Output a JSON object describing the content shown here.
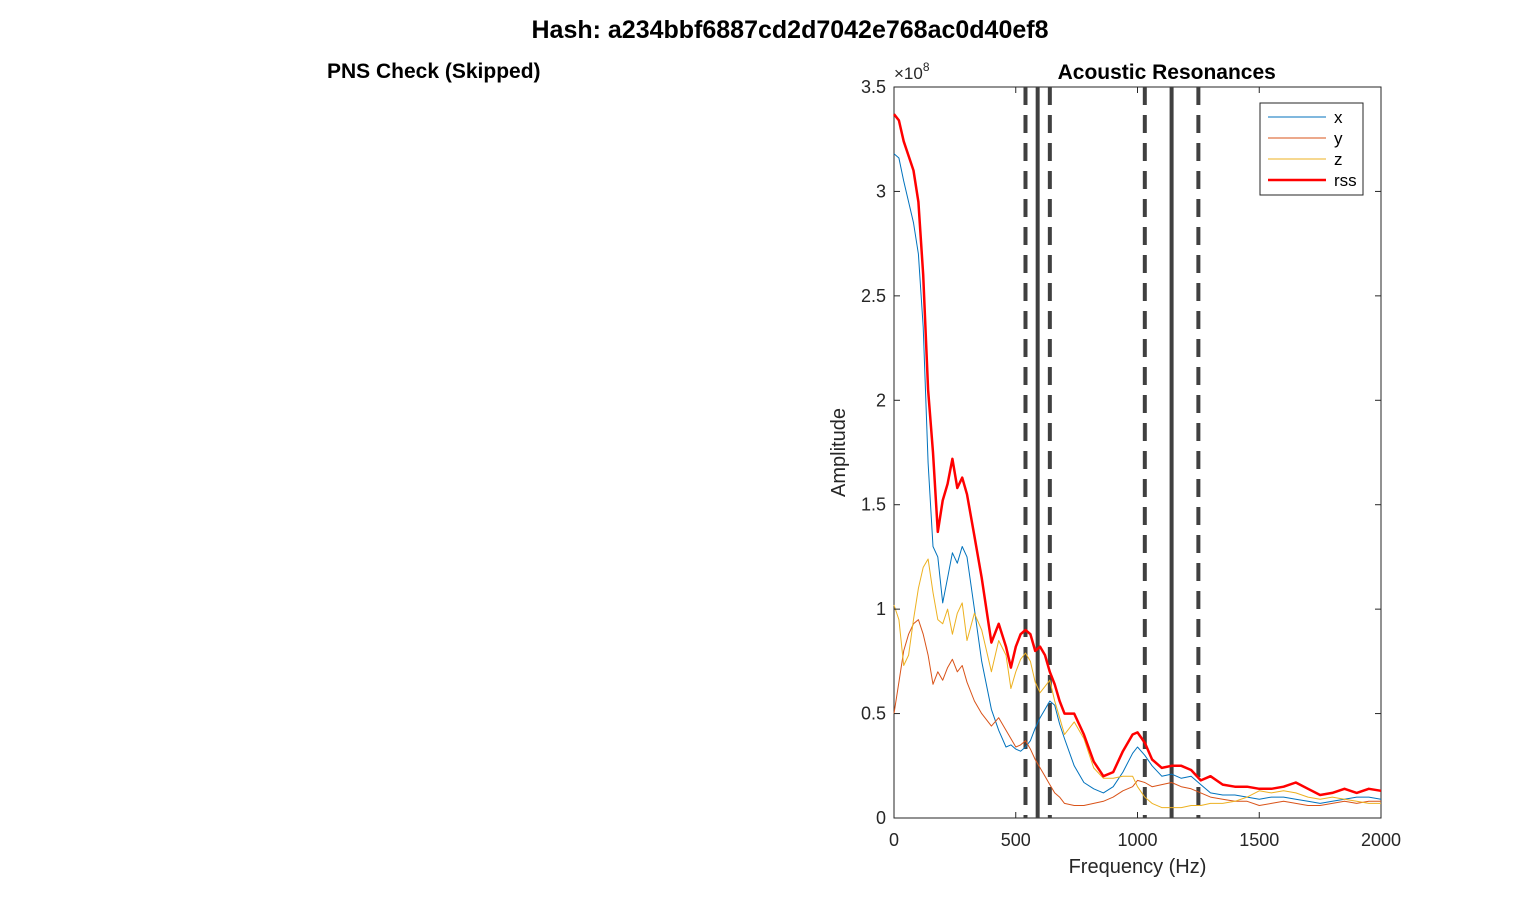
{
  "figure": {
    "title": "Hash: a234bbf6887cd2d7042e768ac0d40ef8",
    "left_panel_title": "PNS Check (Skipped)"
  },
  "chart_data": {
    "type": "line",
    "title": "Acoustic Resonances",
    "xlabel": "Frequency (Hz)",
    "ylabel": "Amplitude",
    "y_exponent_label": "×10",
    "y_exponent_power": "8",
    "xlim": [
      0,
      2000
    ],
    "ylim": [
      0,
      350000000.0
    ],
    "xticks": [
      0,
      500,
      1000,
      1500,
      2000
    ],
    "xtick_labels": [
      "0",
      "500",
      "1000",
      "1500",
      "2000"
    ],
    "yticks": [
      0,
      50000000.0,
      100000000.0,
      150000000.0,
      200000000.0,
      250000000.0,
      300000000.0,
      350000000.0
    ],
    "ytick_labels": [
      "0",
      "0.5",
      "1",
      "1.5",
      "2",
      "2.5",
      "3",
      "3.5"
    ],
    "grid": false,
    "legend_position": "top-right",
    "resonances": {
      "solid": [
        590,
        1140
      ],
      "dashed": [
        540,
        640,
        1030,
        1250
      ]
    },
    "series": [
      {
        "name": "x",
        "color": "#0072BD",
        "width": 1,
        "x": [
          0,
          20,
          40,
          60,
          80,
          100,
          120,
          140,
          160,
          180,
          200,
          220,
          240,
          260,
          280,
          300,
          330,
          360,
          400,
          430,
          460,
          480,
          500,
          520,
          540,
          560,
          580,
          600,
          620,
          640,
          660,
          680,
          700,
          740,
          780,
          820,
          860,
          900,
          940,
          980,
          1000,
          1030,
          1060,
          1100,
          1140,
          1180,
          1220,
          1260,
          1300,
          1350,
          1400,
          1450,
          1500,
          1550,
          1600,
          1650,
          1700,
          1750,
          1800,
          1850,
          1900,
          1950,
          2000
        ],
        "y": [
          318000000.0,
          316000000.0,
          305000000.0,
          295000000.0,
          285000000.0,
          270000000.0,
          235000000.0,
          170000000.0,
          130000000.0,
          125000000.0,
          103000000.0,
          115000000.0,
          127000000.0,
          122000000.0,
          130000000.0,
          125000000.0,
          100000000.0,
          75000000.0,
          52000000.0,
          42000000.0,
          34000000.0,
          35000000.0,
          33000000.0,
          32000000.0,
          34000000.0,
          37000000.0,
          43000000.0,
          48000000.0,
          52000000.0,
          56000000.0,
          54000000.0,
          45000000.0,
          38000000.0,
          25000000.0,
          17000000.0,
          14000000.0,
          12000000.0,
          15000000.0,
          22000000.0,
          31000000.0,
          34000000.0,
          30000000.0,
          25000000.0,
          20000000.0,
          21000000.0,
          19000000.0,
          20000000.0,
          16000000.0,
          12000000.0,
          11000000.0,
          11000000.0,
          10000000.0,
          9000000.0,
          10000000.0,
          10000000.0,
          9000000.0,
          8000000.0,
          7000000.0,
          8000000.0,
          9000000.0,
          10000000.0,
          10000000.0,
          9000000.0
        ]
      },
      {
        "name": "y",
        "color": "#D95319",
        "width": 1,
        "x": [
          0,
          20,
          40,
          60,
          80,
          100,
          120,
          140,
          160,
          180,
          200,
          220,
          240,
          260,
          280,
          300,
          330,
          360,
          400,
          430,
          460,
          480,
          500,
          520,
          540,
          560,
          580,
          600,
          620,
          640,
          660,
          680,
          700,
          740,
          780,
          820,
          860,
          900,
          940,
          980,
          1000,
          1030,
          1060,
          1100,
          1140,
          1180,
          1220,
          1260,
          1300,
          1350,
          1400,
          1450,
          1500,
          1550,
          1600,
          1650,
          1700,
          1750,
          1800,
          1850,
          1900,
          1950,
          2000
        ],
        "y": [
          50000000.0,
          65000000.0,
          80000000.0,
          88000000.0,
          93000000.0,
          95000000.0,
          88000000.0,
          78000000.0,
          64000000.0,
          70000000.0,
          66000000.0,
          72000000.0,
          76000000.0,
          70000000.0,
          73000000.0,
          65000000.0,
          56000000.0,
          50000000.0,
          44000000.0,
          48000000.0,
          42000000.0,
          38000000.0,
          34000000.0,
          35000000.0,
          37000000.0,
          33000000.0,
          28000000.0,
          24000000.0,
          20000000.0,
          16000000.0,
          12000000.0,
          10000000.0,
          7000000.0,
          6000000.0,
          6000000.0,
          7000000.0,
          8000000.0,
          10000000.0,
          13000000.0,
          15000000.0,
          18000000.0,
          17000000.0,
          15000000.0,
          16000000.0,
          17000000.0,
          15000000.0,
          14000000.0,
          12000000.0,
          10000000.0,
          9000000.0,
          8000000.0,
          8000000.0,
          6000000.0,
          7000000.0,
          8000000.0,
          7000000.0,
          6000000.0,
          6000000.0,
          7000000.0,
          8000000.0,
          7000000.0,
          8000000.0,
          8000000.0
        ]
      },
      {
        "name": "z",
        "color": "#EDB120",
        "width": 1,
        "x": [
          0,
          20,
          40,
          60,
          80,
          100,
          120,
          140,
          160,
          180,
          200,
          220,
          240,
          260,
          280,
          300,
          330,
          360,
          400,
          430,
          460,
          480,
          500,
          520,
          540,
          560,
          580,
          600,
          620,
          640,
          660,
          680,
          700,
          740,
          780,
          820,
          860,
          900,
          940,
          980,
          1000,
          1030,
          1060,
          1100,
          1140,
          1180,
          1220,
          1260,
          1300,
          1350,
          1400,
          1450,
          1500,
          1550,
          1600,
          1650,
          1700,
          1750,
          1800,
          1850,
          1900,
          1950,
          2000
        ],
        "y": [
          102000000.0,
          95000000.0,
          73000000.0,
          78000000.0,
          95000000.0,
          110000000.0,
          120000000.0,
          124000000.0,
          108000000.0,
          95000000.0,
          93000000.0,
          100000000.0,
          88000000.0,
          98000000.0,
          103000000.0,
          85000000.0,
          98000000.0,
          90000000.0,
          70000000.0,
          85000000.0,
          78000000.0,
          62000000.0,
          70000000.0,
          76000000.0,
          79000000.0,
          75000000.0,
          65000000.0,
          60000000.0,
          63000000.0,
          66000000.0,
          56000000.0,
          48000000.0,
          40000000.0,
          46000000.0,
          38000000.0,
          24000000.0,
          19000000.0,
          19000000.0,
          20000000.0,
          20000000.0,
          15000000.0,
          10000000.0,
          7000000.0,
          5000000.0,
          5000000.0,
          5000000.0,
          6000000.0,
          6000000.0,
          7000000.0,
          7000000.0,
          8000000.0,
          10000000.0,
          13000000.0,
          12000000.0,
          13000000.0,
          12000000.0,
          10000000.0,
          9000000.0,
          10000000.0,
          9000000.0,
          8000000.0,
          7000000.0,
          7000000.0
        ]
      },
      {
        "name": "rss",
        "color": "#FF0000",
        "width": 2.5,
        "x": [
          0,
          20,
          40,
          60,
          80,
          100,
          120,
          140,
          160,
          180,
          200,
          220,
          240,
          260,
          280,
          300,
          330,
          360,
          400,
          430,
          460,
          480,
          500,
          520,
          540,
          560,
          580,
          600,
          620,
          640,
          660,
          680,
          700,
          740,
          780,
          820,
          860,
          900,
          940,
          980,
          1000,
          1030,
          1060,
          1100,
          1140,
          1180,
          1220,
          1260,
          1300,
          1350,
          1400,
          1450,
          1500,
          1550,
          1600,
          1650,
          1700,
          1750,
          1800,
          1850,
          1900,
          1950,
          2000
        ],
        "y": [
          337000000.0,
          334000000.0,
          324000000.0,
          317000000.0,
          310000000.0,
          295000000.0,
          260000000.0,
          205000000.0,
          175000000.0,
          137000000.0,
          152000000.0,
          160000000.0,
          172000000.0,
          158000000.0,
          163000000.0,
          155000000.0,
          135000000.0,
          115000000.0,
          84000000.0,
          93000000.0,
          82000000.0,
          72000000.0,
          82000000.0,
          88000000.0,
          90000000.0,
          88000000.0,
          80000000.0,
          82000000.0,
          78000000.0,
          70000000.0,
          64000000.0,
          56000000.0,
          50000000.0,
          50000000.0,
          40000000.0,
          27000000.0,
          20000000.0,
          22000000.0,
          32000000.0,
          40000000.0,
          41000000.0,
          36000000.0,
          28000000.0,
          24000000.0,
          25000000.0,
          25000000.0,
          23000000.0,
          18000000.0,
          20000000.0,
          16000000.0,
          15000000.0,
          15000000.0,
          14000000.0,
          14000000.0,
          15000000.0,
          17000000.0,
          14000000.0,
          11000000.0,
          12000000.0,
          14000000.0,
          12000000.0,
          14000000.0,
          13000000.0
        ]
      }
    ]
  }
}
